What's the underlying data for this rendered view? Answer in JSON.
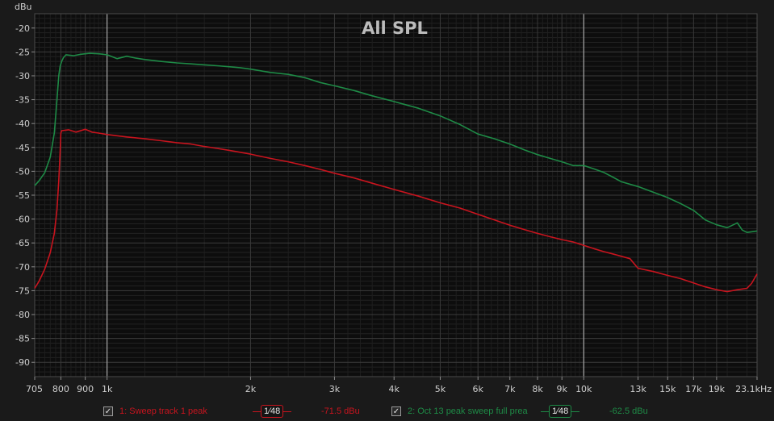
{
  "chart_data": {
    "type": "line",
    "title": "All SPL",
    "ylabel": "dBu",
    "xlabel": "",
    "x_unit_suffix": "Hz",
    "x_scale": "log",
    "xlim": [
      705,
      23100
    ],
    "ylim": [
      -93,
      -17
    ],
    "grid": true,
    "x_ticks": [
      {
        "value": 705,
        "label": "705"
      },
      {
        "value": 800,
        "label": "800"
      },
      {
        "value": 900,
        "label": "900"
      },
      {
        "value": 1000,
        "label": "1k"
      },
      {
        "value": 2000,
        "label": "2k"
      },
      {
        "value": 3000,
        "label": "3k"
      },
      {
        "value": 4000,
        "label": "4k"
      },
      {
        "value": 5000,
        "label": "5k"
      },
      {
        "value": 6000,
        "label": "6k"
      },
      {
        "value": 7000,
        "label": "7k"
      },
      {
        "value": 8000,
        "label": "8k"
      },
      {
        "value": 9000,
        "label": "9k"
      },
      {
        "value": 10000,
        "label": "10k"
      },
      {
        "value": 13000,
        "label": "13k"
      },
      {
        "value": 15000,
        "label": "15k"
      },
      {
        "value": 17000,
        "label": "17k"
      },
      {
        "value": 19000,
        "label": "19k"
      },
      {
        "value": 23100,
        "label": "23.1kHz"
      }
    ],
    "y_ticks": [
      -20,
      -25,
      -30,
      -35,
      -40,
      -45,
      -50,
      -55,
      -60,
      -65,
      -70,
      -75,
      -80,
      -85,
      -90
    ],
    "series": [
      {
        "name": "1: Sweep track 1 peak",
        "color": "#c8141e",
        "points": [
          [
            705,
            -74.5
          ],
          [
            720,
            -73
          ],
          [
            740,
            -70.5
          ],
          [
            760,
            -67
          ],
          [
            775,
            -63
          ],
          [
            785,
            -58
          ],
          [
            792,
            -52
          ],
          [
            797,
            -46
          ],
          [
            800,
            -42
          ],
          [
            803,
            -41.5
          ],
          [
            830,
            -41.3
          ],
          [
            860,
            -41.8
          ],
          [
            900,
            -41.2
          ],
          [
            930,
            -41.8
          ],
          [
            960,
            -42
          ],
          [
            1000,
            -42.3
          ],
          [
            1100,
            -42.8
          ],
          [
            1200,
            -43.2
          ],
          [
            1300,
            -43.6
          ],
          [
            1400,
            -44
          ],
          [
            1500,
            -44.3
          ],
          [
            1600,
            -44.8
          ],
          [
            1700,
            -45.2
          ],
          [
            1800,
            -45.6
          ],
          [
            2000,
            -46.4
          ],
          [
            2200,
            -47.3
          ],
          [
            2400,
            -48
          ],
          [
            2600,
            -48.8
          ],
          [
            2800,
            -49.6
          ],
          [
            3000,
            -50.4
          ],
          [
            3300,
            -51.4
          ],
          [
            3600,
            -52.5
          ],
          [
            4000,
            -53.8
          ],
          [
            4500,
            -55.2
          ],
          [
            5000,
            -56.6
          ],
          [
            5500,
            -57.7
          ],
          [
            6000,
            -59
          ],
          [
            6500,
            -60.2
          ],
          [
            7000,
            -61.3
          ],
          [
            7500,
            -62.2
          ],
          [
            8000,
            -63
          ],
          [
            8500,
            -63.7
          ],
          [
            9000,
            -64.3
          ],
          [
            9500,
            -64.8
          ],
          [
            10000,
            -65.5
          ],
          [
            10500,
            -66.2
          ],
          [
            11000,
            -66.8
          ],
          [
            11500,
            -67.3
          ],
          [
            12000,
            -67.8
          ],
          [
            12500,
            -68.3
          ],
          [
            13000,
            -70.3
          ],
          [
            14000,
            -71
          ],
          [
            15000,
            -71.8
          ],
          [
            16000,
            -72.5
          ],
          [
            17000,
            -73.4
          ],
          [
            18000,
            -74.2
          ],
          [
            19000,
            -74.8
          ],
          [
            20000,
            -75.2
          ],
          [
            21000,
            -74.8
          ],
          [
            22000,
            -74.5
          ],
          [
            22500,
            -73.5
          ],
          [
            23100,
            -71.5
          ]
        ]
      },
      {
        "name": "2: Oct 13 peak sweep  full prea",
        "color": "#1e8a46",
        "points": [
          [
            705,
            -53
          ],
          [
            720,
            -52
          ],
          [
            740,
            -50.3
          ],
          [
            760,
            -47
          ],
          [
            775,
            -42
          ],
          [
            785,
            -35
          ],
          [
            792,
            -30
          ],
          [
            797,
            -28
          ],
          [
            803,
            -27
          ],
          [
            810,
            -26.2
          ],
          [
            820,
            -25.6
          ],
          [
            850,
            -25.8
          ],
          [
            880,
            -25.5
          ],
          [
            920,
            -25.3
          ],
          [
            960,
            -25.4
          ],
          [
            1000,
            -25.6
          ],
          [
            1050,
            -26.4
          ],
          [
            1100,
            -25.9
          ],
          [
            1150,
            -26.3
          ],
          [
            1200,
            -26.6
          ],
          [
            1300,
            -27
          ],
          [
            1400,
            -27.3
          ],
          [
            1500,
            -27.5
          ],
          [
            1600,
            -27.7
          ],
          [
            1700,
            -27.9
          ],
          [
            1800,
            -28.1
          ],
          [
            1900,
            -28.3
          ],
          [
            2000,
            -28.6
          ],
          [
            2200,
            -29.3
          ],
          [
            2400,
            -29.7
          ],
          [
            2600,
            -30.4
          ],
          [
            2800,
            -31.4
          ],
          [
            3000,
            -32.1
          ],
          [
            3300,
            -33.1
          ],
          [
            3600,
            -34.2
          ],
          [
            4000,
            -35.4
          ],
          [
            4500,
            -36.8
          ],
          [
            5000,
            -38.4
          ],
          [
            5500,
            -40.2
          ],
          [
            6000,
            -42.2
          ],
          [
            6500,
            -43.2
          ],
          [
            7000,
            -44.3
          ],
          [
            7500,
            -45.5
          ],
          [
            8000,
            -46.5
          ],
          [
            8500,
            -47.3
          ],
          [
            9000,
            -48
          ],
          [
            9500,
            -48.8
          ],
          [
            10000,
            -48.8
          ],
          [
            10500,
            -49.5
          ],
          [
            11000,
            -50.2
          ],
          [
            11500,
            -51.2
          ],
          [
            12000,
            -52.2
          ],
          [
            13000,
            -53.2
          ],
          [
            14000,
            -54.4
          ],
          [
            15000,
            -55.5
          ],
          [
            16000,
            -56.8
          ],
          [
            17000,
            -58.2
          ],
          [
            18000,
            -60.2
          ],
          [
            19000,
            -61.2
          ],
          [
            20000,
            -61.8
          ],
          [
            21000,
            -60.8
          ],
          [
            21500,
            -62.3
          ],
          [
            22000,
            -62.8
          ],
          [
            23100,
            -62.5
          ]
        ]
      }
    ]
  },
  "legend": {
    "items": [
      {
        "checked": "✓",
        "label": "1: Sweep track 1 peak",
        "smoothing": "1⁄48",
        "readout": "-71.5 dBu",
        "color": "#c8141e"
      },
      {
        "checked": "✓",
        "label": "2: Oct 13 peak sweep  full prea",
        "smoothing": "1⁄48",
        "readout": "-62.5 dBu",
        "color": "#1e8a46"
      }
    ]
  }
}
